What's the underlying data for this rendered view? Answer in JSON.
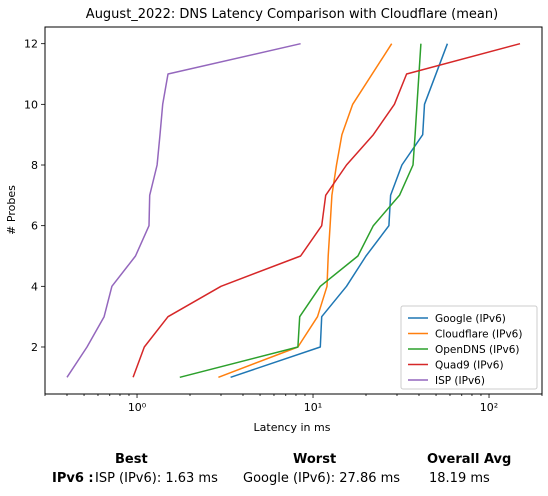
{
  "chart_data": {
    "type": "line",
    "title": "August_2022: DNS Latency Comparison with Cloudflare (mean)",
    "xlabel": "Latency in ms",
    "ylabel": "# Probes",
    "xscale": "log",
    "xlim": [
      0.3,
      200
    ],
    "ylim": [
      0.45,
      12.55
    ],
    "x_ticks": [
      {
        "value": 1,
        "label": "10⁰"
      },
      {
        "value": 10,
        "label": "10¹"
      },
      {
        "value": 100,
        "label": "10²"
      }
    ],
    "y_ticks": [
      2,
      4,
      6,
      8,
      10,
      12
    ],
    "grid": false,
    "legend_position": "lower-right",
    "series": [
      {
        "name": "Google (IPv6)",
        "color": "#1f77b4",
        "x": [
          3.4,
          11.0,
          11.2,
          15.5,
          20.0,
          27.0,
          27.6,
          32.0,
          42.0,
          43.0,
          58.0
        ],
        "y": [
          1,
          2,
          3,
          4,
          5,
          6,
          7,
          8,
          9,
          10,
          12
        ]
      },
      {
        "name": "Cloudflare (IPv6)",
        "color": "#ff7f0e",
        "x": [
          2.9,
          8.2,
          10.6,
          12.0,
          12.2,
          12.5,
          12.8,
          13.6,
          14.6,
          16.8,
          28.0
        ],
        "y": [
          1,
          2,
          3,
          4,
          5,
          6,
          7,
          8,
          9,
          10,
          12
        ]
      },
      {
        "name": "OpenDNS (IPv6)",
        "color": "#2ca02c",
        "x": [
          1.75,
          8.2,
          8.4,
          11.0,
          18.0,
          22.0,
          31.0,
          37.0,
          38.0,
          39.0,
          41.0
        ],
        "y": [
          1,
          2,
          3,
          4,
          5,
          6,
          7,
          8,
          9,
          10,
          12
        ]
      },
      {
        "name": "Quad9 (IPv6)",
        "color": "#d62728",
        "x": [
          0.95,
          1.1,
          1.5,
          3.0,
          8.5,
          11.2,
          11.8,
          15.5,
          22.0,
          29.0,
          34.0,
          150.0
        ],
        "y": [
          1,
          2,
          3,
          4,
          5,
          6,
          7,
          8,
          9,
          10,
          11,
          12
        ]
      },
      {
        "name": "ISP (IPv6)",
        "color": "#9467bd",
        "x": [
          0.4,
          0.52,
          0.65,
          0.72,
          0.98,
          1.17,
          1.18,
          1.3,
          1.35,
          1.4,
          1.5,
          8.5
        ],
        "y": [
          1,
          2,
          3,
          4,
          5,
          6,
          7,
          8,
          9,
          10,
          11,
          12
        ]
      }
    ]
  },
  "summary": {
    "best_header": "Best",
    "worst_header": "Worst",
    "avg_header": "Overall Avg",
    "row_label": "IPv6 :",
    "best_value": "ISP (IPv6): 1.63 ms",
    "worst_value": "Google (IPv6): 27.86 ms",
    "avg_value": "18.19 ms"
  }
}
